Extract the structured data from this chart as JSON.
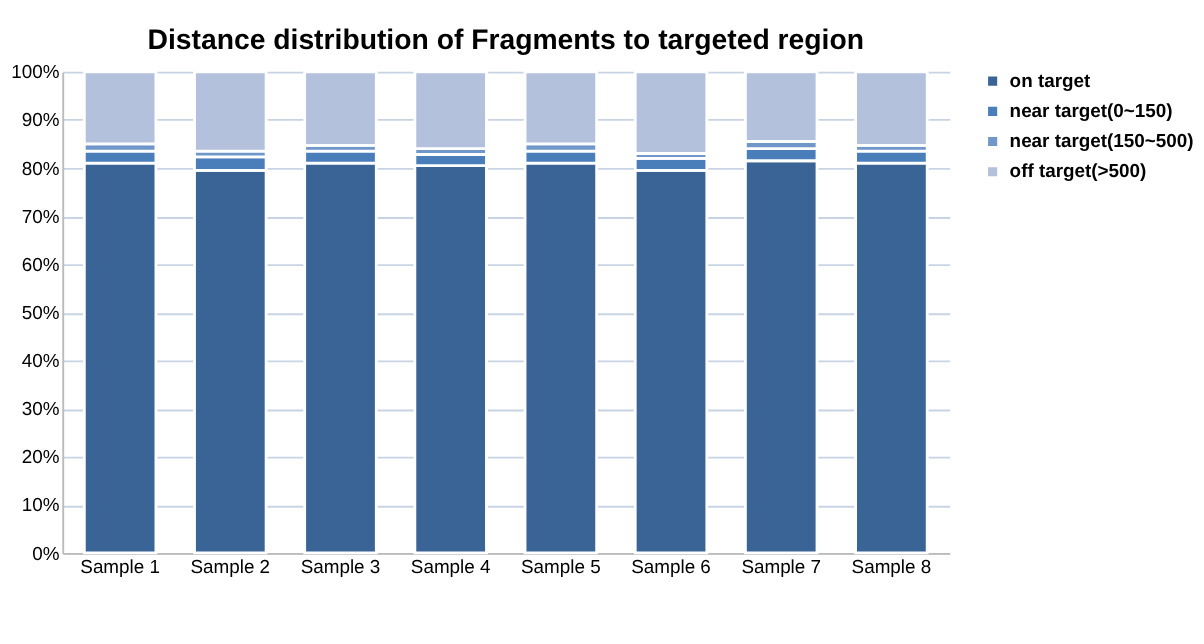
{
  "chart_data": {
    "type": "bar",
    "title": "Distance distribution of Fragments to targeted region",
    "stacked": true,
    "legend": "right",
    "grid": "y",
    "categories": [
      "Sample 1",
      "Sample 2",
      "Sample 3",
      "Sample 4",
      "Sample 5",
      "Sample 6",
      "Sample 7",
      "Sample 8"
    ],
    "ylim": [
      0,
      100
    ],
    "yticks": [
      {
        "value": 0,
        "label": "0%"
      },
      {
        "value": 10,
        "label": "10%"
      },
      {
        "value": 20,
        "label": "20%"
      },
      {
        "value": 30,
        "label": "30%"
      },
      {
        "value": 40,
        "label": "40%"
      },
      {
        "value": 50,
        "label": "50%"
      },
      {
        "value": 60,
        "label": "60%"
      },
      {
        "value": 70,
        "label": "70%"
      },
      {
        "value": 80,
        "label": "80%"
      },
      {
        "value": 90,
        "label": "90%"
      },
      {
        "value": 100,
        "label": "100%"
      }
    ],
    "series": [
      {
        "name": "on target",
        "color": "#3a6496",
        "values": [
          81,
          79.5,
          81,
          80.5,
          81,
          79.5,
          81.5,
          81
        ]
      },
      {
        "name": "near target(0~150)",
        "color": "#4a7ebb",
        "values": [
          2.5,
          2.8,
          2.5,
          2.3,
          2.5,
          2.5,
          2.5,
          2.5
        ]
      },
      {
        "name": "near target(150~500)",
        "color": "#6f97c9",
        "values": [
          1.5,
          1.2,
          1.2,
          1.2,
          1.5,
          1,
          1.5,
          1.2
        ]
      },
      {
        "name": "off target(>500)",
        "color": "#b3c1dc",
        "values": [
          15,
          16.5,
          15.3,
          16,
          15,
          17,
          14.5,
          15.3
        ]
      }
    ]
  }
}
